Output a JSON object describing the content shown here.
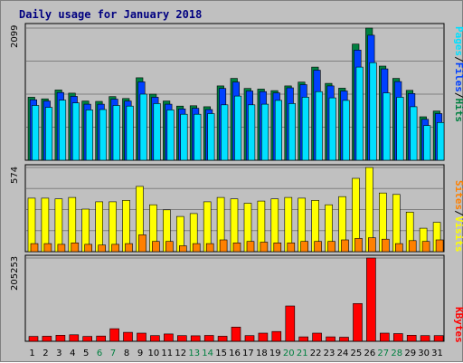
{
  "title": "Daily usage for January 2018",
  "colors": {
    "background": "#c0c0c0",
    "plot_bg": "#c0c0c0",
    "hits": "#008040",
    "files": "#0040ff",
    "pages": "#00e0ff",
    "visits": "#ffff00",
    "sites": "#ff8000",
    "kbytes": "#ff0000",
    "weekend_label": "#008040",
    "weekday_label": "#000000",
    "title": "#000080"
  },
  "chart_data": [
    {
      "type": "bar",
      "name": "hits-files-pages",
      "max_label": "2099",
      "ylim": [
        0,
        2099
      ],
      "legend": [
        "Pages",
        "/",
        "Files",
        "/",
        "Hits"
      ],
      "categories": [
        "1",
        "2",
        "3",
        "4",
        "5",
        "6",
        "7",
        "8",
        "9",
        "10",
        "11",
        "12",
        "13",
        "14",
        "15",
        "16",
        "17",
        "18",
        "19",
        "20",
        "21",
        "22",
        "23",
        "24",
        "25",
        "26",
        "27",
        "28",
        "29",
        "30",
        "31"
      ],
      "series": [
        {
          "name": "Hits",
          "values": [
            1000,
            975,
            1115,
            1065,
            940,
            935,
            1010,
            980,
            1310,
            1050,
            940,
            860,
            865,
            850,
            1180,
            1300,
            1140,
            1130,
            1105,
            1180,
            1240,
            1480,
            1220,
            1145,
            1845,
            2099,
            1495,
            1300,
            1110,
            690,
            780
          ]
        },
        {
          "name": "Files",
          "values": [
            960,
            940,
            1075,
            1015,
            890,
            890,
            970,
            940,
            1245,
            1000,
            890,
            815,
            825,
            805,
            1140,
            1240,
            1100,
            1090,
            1070,
            1150,
            1200,
            1430,
            1180,
            1100,
            1750,
            1985,
            1450,
            1250,
            1060,
            650,
            740
          ]
        },
        {
          "name": "Pages",
          "values": [
            870,
            840,
            955,
            910,
            800,
            805,
            870,
            860,
            1050,
            900,
            800,
            730,
            730,
            740,
            880,
            1020,
            880,
            890,
            950,
            900,
            1000,
            1090,
            990,
            950,
            1480,
            1550,
            1070,
            1000,
            850,
            550,
            600
          ]
        }
      ]
    },
    {
      "type": "bar",
      "name": "visits-sites",
      "max_label": "574",
      "ylim": [
        0,
        574
      ],
      "legend": [
        "Sites",
        "/",
        "Visits"
      ],
      "categories": [
        "1",
        "2",
        "3",
        "4",
        "5",
        "6",
        "7",
        "8",
        "9",
        "10",
        "11",
        "12",
        "13",
        "14",
        "15",
        "16",
        "17",
        "18",
        "19",
        "20",
        "21",
        "22",
        "23",
        "24",
        "25",
        "26",
        "27",
        "28",
        "29",
        "30",
        "31"
      ],
      "series": [
        {
          "name": "Visits",
          "values": [
            365,
            365,
            360,
            370,
            290,
            340,
            340,
            350,
            445,
            320,
            285,
            240,
            260,
            340,
            370,
            360,
            330,
            345,
            360,
            370,
            365,
            350,
            320,
            375,
            500,
            574,
            400,
            390,
            270,
            160,
            200
          ]
        },
        {
          "name": "Sites",
          "values": [
            55,
            55,
            50,
            60,
            50,
            45,
            50,
            55,
            115,
            70,
            70,
            40,
            55,
            55,
            80,
            60,
            70,
            65,
            60,
            60,
            70,
            70,
            70,
            80,
            90,
            95,
            85,
            55,
            75,
            70,
            80
          ]
        }
      ]
    },
    {
      "type": "bar",
      "name": "kbytes",
      "max_label": "205253",
      "ylim": [
        0,
        205253
      ],
      "legend": [
        "KBytes"
      ],
      "categories": [
        "1",
        "2",
        "3",
        "4",
        "5",
        "6",
        "7",
        "8",
        "9",
        "10",
        "11",
        "12",
        "13",
        "14",
        "15",
        "16",
        "17",
        "18",
        "19",
        "20",
        "21",
        "22",
        "23",
        "24",
        "25",
        "26",
        "27",
        "28",
        "29",
        "30",
        "31"
      ],
      "series": [
        {
          "name": "KBytes",
          "values": [
            12000,
            12500,
            15000,
            16000,
            12000,
            13000,
            31000,
            22000,
            20000,
            14000,
            18000,
            14000,
            13500,
            14500,
            12500,
            35000,
            14000,
            20000,
            24000,
            87000,
            11000,
            20000,
            11000,
            10000,
            93000,
            205253,
            20000,
            19000,
            15000,
            14000,
            14000
          ]
        }
      ]
    }
  ],
  "weekend_days": [
    "6",
    "7",
    "13",
    "14",
    "20",
    "21",
    "27",
    "28"
  ]
}
